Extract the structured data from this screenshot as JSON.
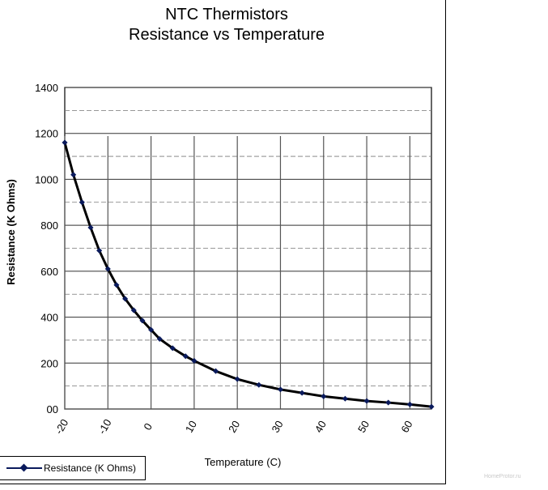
{
  "chart_data": {
    "type": "line",
    "title": "NTC Thermistors\nResistance vs Temperature",
    "xlabel": "Temperature (C)",
    "ylabel": "Resistance (K Ohms)",
    "x_ticks": [
      "-20",
      "-10",
      "0",
      "10",
      "20",
      "30",
      "40",
      "50",
      "60"
    ],
    "y_ticks": [
      "00",
      "200",
      "400",
      "600",
      "800",
      "1000",
      "1200",
      "1400"
    ],
    "xlim": [
      -20,
      65
    ],
    "ylim": [
      0,
      1400
    ],
    "grid": true,
    "legend_position": "bottom-left",
    "series": [
      {
        "name": "Resistance (K Ohms)",
        "color": "#0a1a5c",
        "x": [
          -20,
          -18,
          -16,
          -14,
          -12,
          -10,
          -8,
          -6,
          -4,
          -2,
          0,
          2,
          5,
          8,
          10,
          15,
          20,
          25,
          30,
          35,
          40,
          45,
          50,
          55,
          60,
          65
        ],
        "y": [
          1160,
          1020,
          900,
          790,
          690,
          610,
          540,
          480,
          430,
          385,
          345,
          305,
          265,
          230,
          210,
          165,
          130,
          105,
          85,
          70,
          55,
          45,
          35,
          28,
          20,
          10
        ]
      }
    ]
  },
  "watermark": "HomeProtor.ru"
}
